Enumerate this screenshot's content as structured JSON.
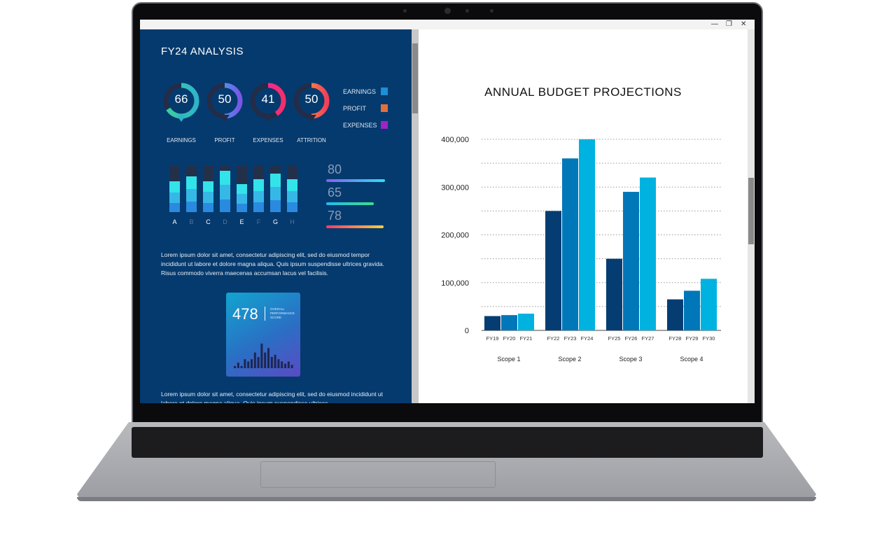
{
  "window": {
    "minimize_icon": "—",
    "restore_icon": "❐",
    "close_icon": "✕"
  },
  "left_panel": {
    "title": "FY24 ANALYSIS",
    "donuts": [
      {
        "value": "66",
        "label": "EARNINGS",
        "fraction": 0.66,
        "colors": [
          "#3ad29f",
          "#2fb3c9"
        ]
      },
      {
        "value": "50",
        "label": "PROFIT",
        "fraction": 0.5,
        "colors": [
          "#29c6f0",
          "#7a55e8"
        ]
      },
      {
        "value": "41",
        "label": "EXPENSES",
        "fraction": 0.41,
        "colors": [
          "#ff1fb4",
          "#f1306a"
        ]
      },
      {
        "value": "50",
        "label": "ATTRITION",
        "fraction": 0.5,
        "colors": [
          "#ffb23a",
          "#f23f5a"
        ]
      }
    ],
    "legend": [
      {
        "label": "EARNINGS",
        "color": "#1e8ed6"
      },
      {
        "label": "PROFIT",
        "color": "#e2703a"
      },
      {
        "label": "EXPENSES",
        "color": "#a023c8"
      }
    ],
    "mini_bars": [
      {
        "label": "A",
        "fill": 0.66,
        "bright": true
      },
      {
        "label": "B",
        "fill": 0.78,
        "bright": false
      },
      {
        "label": "C",
        "fill": 0.67,
        "bright": true
      },
      {
        "label": "D",
        "fill": 0.9,
        "bright": false
      },
      {
        "label": "E",
        "fill": 0.61,
        "bright": true
      },
      {
        "label": "F",
        "fill": 0.71,
        "bright": false
      },
      {
        "label": "G",
        "fill": 0.84,
        "bright": true
      },
      {
        "label": "H",
        "fill": 0.71,
        "bright": false
      }
    ],
    "progress": [
      {
        "value": "80",
        "fraction": 0.8,
        "colors": [
          "#8a5cf0",
          "#2fe0f0"
        ]
      },
      {
        "value": "65",
        "fraction": 0.65,
        "colors": [
          "#28b8f0",
          "#3ae08a"
        ]
      },
      {
        "value": "78",
        "fraction": 0.78,
        "colors": [
          "#ff3a6a",
          "#ffd23a"
        ]
      }
    ],
    "paragraph1": "Lorem ipsum dolor sit amet, consectetur adipiscing elit, sed do eiusmod tempor incididunt ut labore et dolore magna aliqua. Quis ipsum suspendisse ultrices gravida. Risus commodo viverra maecenas accumsan lacus vel facilisis.",
    "score_card": {
      "value": "478",
      "label": "OVERALL PERFORMANCE SCORE",
      "bars": [
        2,
        5,
        2,
        8,
        6,
        8,
        14,
        10,
        22,
        14,
        18,
        10,
        12,
        8,
        6,
        4,
        6,
        3
      ]
    },
    "paragraph2": "Lorem ipsum dolor sit amet, consectetur adipiscing elit, sed do eiusmod incididunt ut labore et dolore magna aliqua. Quis ipsum suspendisse ultrices"
  },
  "chart_data": {
    "type": "bar",
    "title": "ANNUAL BUDGET PROJECTIONS",
    "groups": [
      {
        "name": "Scope 1",
        "categories": [
          "FY19",
          "FY20",
          "FY21"
        ],
        "values": [
          30000,
          32000,
          35000
        ]
      },
      {
        "name": "Scope 2",
        "categories": [
          "FY22",
          "FY23",
          "FY24"
        ],
        "values": [
          250000,
          360000,
          400000
        ]
      },
      {
        "name": "Scope 3",
        "categories": [
          "FY25",
          "FY26",
          "FY27"
        ],
        "values": [
          150000,
          290000,
          320000
        ]
      },
      {
        "name": "Scope 4",
        "categories": [
          "FY28",
          "FY29",
          "FY30"
        ],
        "values": [
          65000,
          83000,
          108000
        ]
      }
    ],
    "bar_colors": [
      "#053d72",
      "#0077b8",
      "#00b2e0"
    ],
    "yticks": [
      "0",
      "100,000",
      "200,000",
      "300,000",
      "400,000"
    ],
    "ylim": [
      0,
      400000
    ],
    "grid": "dotted, every 50,000"
  }
}
